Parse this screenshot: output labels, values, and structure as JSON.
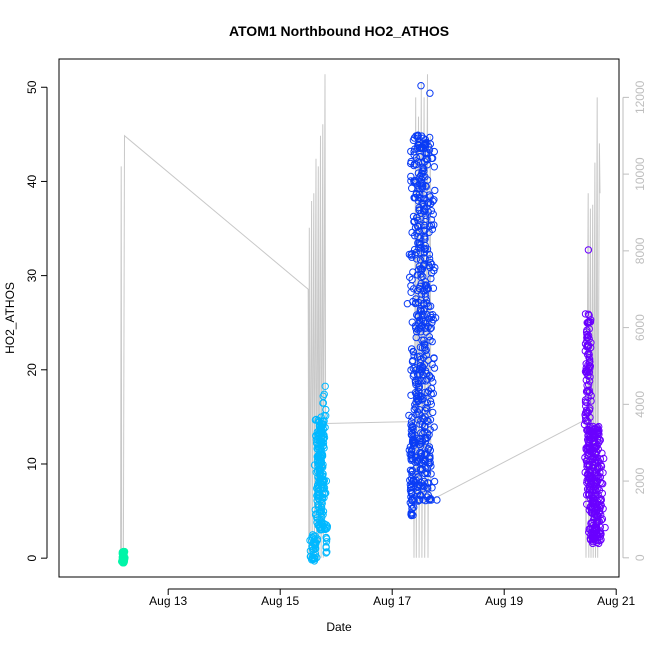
{
  "chart_data": {
    "type": "scatter",
    "title": "ATOM1 Northbound HO2_ATHOS",
    "xlabel": "Date",
    "ylabel": "HO2_ATHOS",
    "x_ticks": [
      "Aug 13",
      "Aug 15",
      "Aug 17",
      "Aug 19",
      "Aug 21"
    ],
    "x_tick_days": [
      13,
      15,
      17,
      19,
      21
    ],
    "xlim_days": [
      11.05,
      21.05
    ],
    "y_ticks": [
      0,
      10,
      20,
      30,
      40,
      50
    ],
    "ylim": [
      -2,
      53
    ],
    "y2_ticks": [
      0,
      2000,
      4000,
      6000,
      8000,
      10000,
      12000
    ],
    "y2lim": [
      -500,
      13000
    ],
    "y2_color": "#bebebe",
    "grid": false,
    "series": [
      {
        "color": "#00f5a8",
        "clusters": [
          {
            "center_day": 12.2,
            "spread_days": 0.04,
            "y_min": -0.5,
            "y_max": 0.7,
            "count": 60
          }
        ]
      },
      {
        "color": "#00b8ff",
        "clusters": [
          {
            "center_day": 15.6,
            "spread_days": 0.1,
            "y_min": -0.3,
            "y_max": 2.5,
            "count": 40
          },
          {
            "center_day": 15.72,
            "spread_days": 0.12,
            "y_min": 3,
            "y_max": 15,
            "count": 200
          },
          {
            "center_day": 15.78,
            "spread_days": 0.05,
            "y_min": 14,
            "y_max": 18.5,
            "count": 10
          },
          {
            "center_day": 15.83,
            "spread_days": 0.03,
            "y_min": 0.5,
            "y_max": 4,
            "count": 12
          }
        ]
      },
      {
        "color": "#0a3cf5",
        "clusters": [
          {
            "center_day": 17.35,
            "spread_days": 0.05,
            "y_min": 4.5,
            "y_max": 15,
            "count": 60
          },
          {
            "center_day": 17.53,
            "spread_days": 0.32,
            "y_min": 6,
            "y_max": 45,
            "count": 500
          },
          {
            "center_day": 17.5,
            "spread_days": 0.05,
            "y_min": 50,
            "y_max": 51,
            "count": 1
          },
          {
            "center_day": 17.68,
            "spread_days": 0.04,
            "y_min": 48.5,
            "y_max": 49.5,
            "count": 1
          }
        ]
      },
      {
        "color": "#6a00ff",
        "clusters": [
          {
            "center_day": 20.5,
            "spread_days": 0.08,
            "y_min": 8,
            "y_max": 26,
            "count": 120
          },
          {
            "center_day": 20.62,
            "spread_days": 0.22,
            "y_min": 1.5,
            "y_max": 14,
            "count": 260
          },
          {
            "center_day": 20.5,
            "spread_days": 0.02,
            "y_min": 32.5,
            "y_max": 33.2,
            "count": 1
          }
        ]
      }
    ],
    "overlay_line": {
      "color": "#c8c8c8",
      "axis": "y2",
      "points": [
        [
          12.15,
          0
        ],
        [
          12.16,
          10200
        ],
        [
          12.17,
          200
        ],
        [
          12.2,
          200
        ],
        [
          12.22,
          11000
        ],
        [
          15.5,
          7000
        ],
        [
          15.51,
          0
        ],
        [
          15.52,
          8600
        ],
        [
          15.53,
          0
        ],
        [
          15.56,
          9300
        ],
        [
          15.57,
          0
        ],
        [
          15.6,
          9500
        ],
        [
          15.61,
          0
        ],
        [
          15.64,
          10400
        ],
        [
          15.65,
          0
        ],
        [
          15.68,
          10200
        ],
        [
          15.69,
          0
        ],
        [
          15.72,
          11000
        ],
        [
          15.73,
          0
        ],
        [
          15.76,
          11300
        ],
        [
          15.77,
          0
        ],
        [
          15.8,
          12600
        ],
        [
          15.81,
          3500
        ],
        [
          17.38,
          3550
        ],
        [
          17.39,
          0
        ],
        [
          17.42,
          12000
        ],
        [
          17.43,
          0
        ],
        [
          17.47,
          11500
        ],
        [
          17.48,
          0
        ],
        [
          17.52,
          12400
        ],
        [
          17.53,
          0
        ],
        [
          17.57,
          12000
        ],
        [
          17.58,
          0
        ],
        [
          17.63,
          12600
        ],
        [
          17.64,
          0
        ],
        [
          17.68,
          11000
        ],
        [
          17.69,
          1500
        ],
        [
          20.45,
          3600
        ],
        [
          20.46,
          0
        ],
        [
          20.5,
          9500
        ],
        [
          20.51,
          0
        ],
        [
          20.54,
          9100
        ],
        [
          20.55,
          0
        ],
        [
          20.58,
          9200
        ],
        [
          20.59,
          0
        ],
        [
          20.62,
          10300
        ],
        [
          20.63,
          0
        ],
        [
          20.66,
          12000
        ],
        [
          20.67,
          0
        ],
        [
          20.7,
          10800
        ],
        [
          20.71,
          9500
        ]
      ]
    }
  }
}
